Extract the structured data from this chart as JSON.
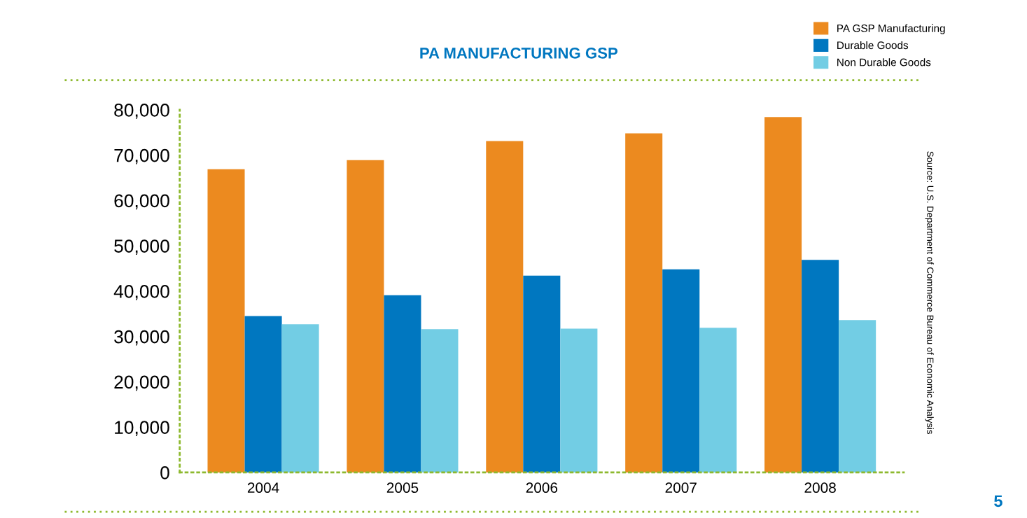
{
  "chart_data": {
    "type": "bar",
    "title": "PA MANUFACTURING GSP",
    "categories": [
      "2004",
      "2005",
      "2006",
      "2007",
      "2008"
    ],
    "series": [
      {
        "name": "PA GSP Manufacturing",
        "color": "#ec8a1f",
        "values": [
          66900,
          68900,
          73100,
          74800,
          78400
        ]
      },
      {
        "name": "Durable Goods",
        "color": "#0077c0",
        "values": [
          34500,
          39100,
          43400,
          44800,
          46900
        ]
      },
      {
        "name": "Non Durable Goods",
        "color": "#72cde4",
        "values": [
          32700,
          31600,
          31700,
          31900,
          33600
        ]
      }
    ],
    "ylim": [
      0,
      80000
    ],
    "yticks": [
      {
        "value": 0,
        "label": "0"
      },
      {
        "value": 10000,
        "label": "10,000"
      },
      {
        "value": 20000,
        "label": "20,000"
      },
      {
        "value": 30000,
        "label": "30,000"
      },
      {
        "value": 40000,
        "label": "40,000"
      },
      {
        "value": 50000,
        "label": "50,000"
      },
      {
        "value": 60000,
        "label": "60,000"
      },
      {
        "value": 70000,
        "label": "70,000"
      },
      {
        "value": 80000,
        "label": "80,000"
      }
    ],
    "grid": false,
    "legend": "top right",
    "annotations": [
      "Source: U.S. Department of Commerce Bureau of Economic Analysis",
      "5"
    ]
  }
}
